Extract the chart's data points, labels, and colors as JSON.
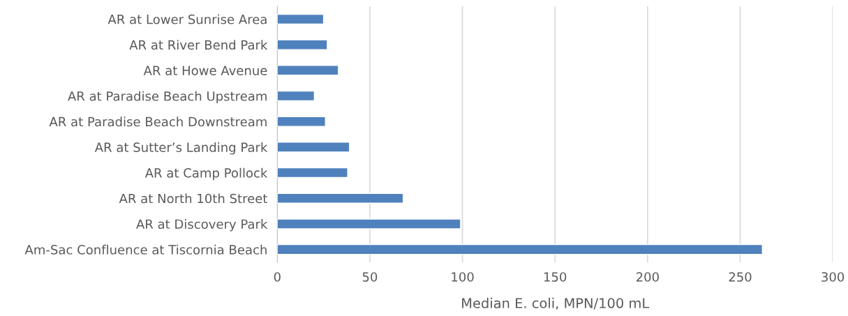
{
  "chart_data": {
    "type": "bar",
    "orientation": "horizontal",
    "xlabel": "Median E. coli, MPN/100 mL",
    "categories": [
      "AR at Lower Sunrise Area",
      "AR at River Bend Park",
      "AR at Howe Avenue",
      "AR at Paradise Beach Upstream",
      "AR at Paradise Beach Downstream",
      "AR at Sutter’s Landing Park",
      "AR at Camp Pollock",
      "AR at North 10th Street",
      "AR at Discovery Park",
      "Am-Sac Confluence at Tiscornia Beach"
    ],
    "values": [
      25,
      27,
      33,
      20,
      26,
      39,
      38,
      68,
      99,
      262
    ],
    "color": "#4f81bd",
    "xlim": [
      0,
      300
    ],
    "xticks": [
      0,
      50,
      100,
      150,
      200,
      250,
      300
    ],
    "grid": "x",
    "legend": false
  }
}
